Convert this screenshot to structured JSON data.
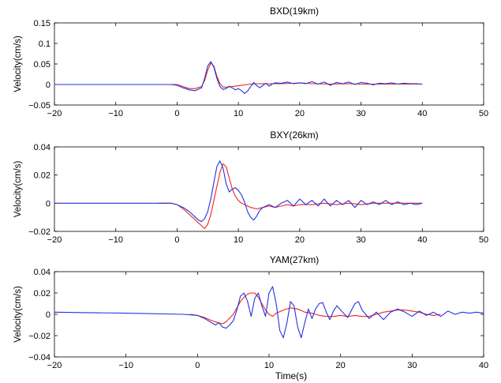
{
  "figure": {
    "xlabel": "Time(s)",
    "series_colors": {
      "red": "#ee2222",
      "blue": "#2233dd"
    }
  },
  "chart_data": [
    {
      "type": "line",
      "title": "BXD(19km)",
      "xlabel": "",
      "ylabel": "Velocity(cm/s)",
      "xlim": [
        -20,
        50
      ],
      "ylim": [
        -0.05,
        0.15
      ],
      "xticks": [
        "−20",
        "−10",
        "0",
        "10",
        "20",
        "30",
        "40",
        "50"
      ],
      "yticks": [
        "−0.05",
        "0",
        "0.05",
        "0.1",
        "0.15"
      ],
      "grid": false,
      "series": [
        {
          "color": "#ee2222",
          "x": [
            -3,
            0,
            1,
            2,
            3,
            4,
            4.5,
            5,
            5.5,
            6,
            6.5,
            7,
            7.5,
            8,
            9,
            10,
            11,
            12,
            13,
            15,
            17,
            19,
            20,
            22,
            25,
            28,
            30,
            33,
            36,
            40
          ],
          "y": [
            0,
            0,
            -0.005,
            -0.01,
            -0.01,
            -0.005,
            0.01,
            0.035,
            0.052,
            0.045,
            0.02,
            0.002,
            -0.006,
            -0.007,
            -0.005,
            -0.003,
            -0.001,
            0.001,
            0.002,
            0.002,
            0.002,
            0.003,
            0.004,
            0.002,
            0.001,
            0.002,
            0.001,
            0.001,
            0.001,
            0.001
          ]
        },
        {
          "color": "#2233dd",
          "x": [
            -20,
            -5,
            -1,
            0,
            1,
            2,
            3,
            4,
            4.5,
            5,
            5.5,
            6,
            6.5,
            7,
            7.5,
            8,
            8.5,
            9,
            9.5,
            10,
            10.5,
            11,
            11.5,
            12,
            12.5,
            13,
            13.5,
            14,
            14.5,
            15,
            15.5,
            16,
            17,
            18,
            19,
            20,
            21,
            22,
            23,
            24,
            25,
            26,
            27,
            28,
            29,
            30,
            31,
            32,
            33,
            34,
            35,
            36,
            37,
            38,
            39,
            40
          ],
          "y": [
            0,
            0,
            0,
            -0.002,
            -0.008,
            -0.013,
            -0.015,
            -0.008,
            0.015,
            0.045,
            0.056,
            0.042,
            0.015,
            -0.005,
            -0.012,
            -0.01,
            -0.004,
            -0.008,
            -0.013,
            -0.01,
            -0.015,
            -0.022,
            -0.016,
            -0.005,
            0.005,
            -0.003,
            -0.008,
            -0.002,
            0.003,
            -0.004,
            0.001,
            0.004,
            0.003,
            0.006,
            0.002,
            0.004,
            0.002,
            0.007,
            0.001,
            0.006,
            -0.002,
            0.005,
            0.002,
            0.006,
            0,
            0.005,
            0.003,
            -0.001,
            0.003,
            0.002,
            0.004,
            0.001,
            0.003,
            0.002,
            0.002,
            0.001
          ]
        }
      ]
    },
    {
      "type": "line",
      "title": "BXY(26km)",
      "xlabel": "",
      "ylabel": "Velocity(cm/s)",
      "xlim": [
        -20,
        50
      ],
      "ylim": [
        -0.02,
        0.04
      ],
      "xticks": [
        "−20",
        "−10",
        "0",
        "10",
        "20",
        "30",
        "40",
        "50"
      ],
      "yticks": [
        "−0.02",
        "0",
        "0.02",
        "0.04"
      ],
      "grid": false,
      "series": [
        {
          "color": "#ee2222",
          "x": [
            -3,
            -1,
            0,
            1,
            2,
            3,
            4,
            4.5,
            5,
            5.5,
            6,
            6.5,
            7,
            7.5,
            8,
            8.5,
            9,
            9.5,
            10,
            10.5,
            11,
            11.5,
            12,
            13,
            14,
            15,
            16,
            17,
            18,
            19,
            20,
            22,
            24,
            26,
            28,
            30,
            32,
            34,
            36,
            38,
            40
          ],
          "y": [
            0,
            0,
            -0.001,
            -0.004,
            -0.008,
            -0.012,
            -0.016,
            -0.018,
            -0.015,
            -0.008,
            0.002,
            0.012,
            0.022,
            0.028,
            0.026,
            0.018,
            0.01,
            0.005,
            0.002,
            0,
            -0.001,
            -0.002,
            -0.003,
            -0.004,
            -0.003,
            -0.002,
            -0.003,
            -0.002,
            -0.001,
            -0.002,
            -0.001,
            -0.001,
            0,
            -0.001,
            0,
            -0.001,
            0,
            0,
            0,
            0,
            0
          ]
        },
        {
          "color": "#2233dd",
          "x": [
            -20,
            -5,
            -1,
            0,
            1,
            2,
            3,
            3.5,
            4,
            4.5,
            5,
            5.5,
            6,
            6.5,
            7,
            7.5,
            8,
            8.5,
            9,
            9.5,
            10,
            10.5,
            11,
            11.5,
            12,
            12.5,
            13,
            13.5,
            14,
            15,
            16,
            17,
            18,
            19,
            20,
            21,
            22,
            23,
            24,
            25,
            26,
            27,
            28,
            29,
            30,
            31,
            32,
            33,
            34,
            35,
            36,
            37,
            38,
            39,
            40
          ],
          "y": [
            0,
            0,
            0,
            -0.001,
            -0.003,
            -0.006,
            -0.01,
            -0.012,
            -0.013,
            -0.011,
            -0.006,
            0.003,
            0.015,
            0.026,
            0.03,
            0.025,
            0.014,
            0.008,
            0.01,
            0.011,
            0.009,
            0.006,
            0.001,
            -0.006,
            -0.01,
            -0.012,
            -0.009,
            -0.005,
            -0.003,
            -0.001,
            -0.003,
            0,
            0.002,
            -0.002,
            0.003,
            -0.001,
            0.002,
            -0.002,
            0.003,
            -0.002,
            0.002,
            -0.001,
            0.002,
            -0.003,
            0.002,
            -0.001,
            0.001,
            -0.001,
            0.002,
            -0.001,
            0.001,
            -0.001,
            0,
            -0.001,
            0
          ]
        }
      ]
    },
    {
      "type": "line",
      "title": "YAM(27km)",
      "xlabel": "Time(s)",
      "ylabel": "Velocity(cm/s)",
      "xlim": [
        -20,
        40
      ],
      "ylim": [
        -0.04,
        0.04
      ],
      "xticks": [
        "−20",
        "−10",
        "0",
        "10",
        "20",
        "30",
        "40"
      ],
      "yticks": [
        "−0.04",
        "−0.02",
        "0",
        "0.02",
        "0.04"
      ],
      "grid": false,
      "series": [
        {
          "color": "#ee2222",
          "x": [
            -1,
            0,
            1,
            2,
            3,
            3.5,
            4,
            5,
            5.5,
            6,
            6.5,
            7,
            7.5,
            8,
            8.5,
            9,
            9.5,
            10,
            10.5,
            11,
            12,
            13,
            14,
            15,
            16,
            17,
            18,
            19,
            20,
            21,
            22,
            23,
            24,
            25,
            26,
            27,
            28,
            29,
            30,
            31,
            32,
            33,
            34
          ],
          "y": [
            0,
            -0.001,
            -0.003,
            -0.006,
            -0.008,
            -0.009,
            -0.007,
            0,
            0.006,
            0.012,
            0.016,
            0.019,
            0.02,
            0.02,
            0.016,
            0.01,
            0.004,
            0,
            -0.002,
            0.001,
            0.004,
            0.006,
            0.005,
            0.002,
            0.001,
            -0.001,
            -0.002,
            -0.002,
            -0.001,
            -0.002,
            -0.001,
            -0.002,
            -0.002,
            0,
            0.002,
            0.003,
            0.004,
            0.004,
            0.003,
            0.002,
            0,
            -0.001,
            0
          ]
        },
        {
          "color": "#2233dd",
          "x": [
            -20,
            -10,
            -2,
            0,
            1,
            2,
            2.5,
            3,
            3.5,
            4,
            4.5,
            5,
            5.5,
            6,
            6.5,
            7,
            7.5,
            8,
            8.5,
            9,
            9.5,
            10,
            10.5,
            11,
            11.5,
            12,
            12.5,
            13,
            13.5,
            14,
            14.5,
            15,
            15.5,
            16,
            16.5,
            17,
            17.5,
            18,
            18.5,
            19,
            19.5,
            20,
            21,
            22,
            22.5,
            23,
            24,
            25,
            26,
            27,
            28,
            29,
            30,
            31,
            32,
            33,
            34,
            35,
            36,
            37,
            38,
            39,
            40
          ],
          "y": [
            0.002,
            0.001,
            0,
            -0.001,
            -0.004,
            -0.008,
            -0.01,
            -0.008,
            -0.012,
            -0.013,
            -0.01,
            -0.006,
            0.004,
            0.017,
            0.02,
            0.012,
            -0.002,
            0.015,
            0.02,
            0.008,
            -0.002,
            0.02,
            0.026,
            0.01,
            -0.015,
            -0.022,
            -0.008,
            0.012,
            0.008,
            -0.012,
            -0.022,
            -0.008,
            0.005,
            -0.004,
            0.005,
            0.01,
            0.011,
            0.002,
            -0.005,
            0.003,
            0.008,
            0.004,
            -0.003,
            0.01,
            0.012,
            0.004,
            -0.004,
            0.002,
            -0.005,
            0.002,
            0.005,
            0.002,
            -0.002,
            0.003,
            -0.001,
            0.002,
            -0.002,
            0.003,
            0,
            0.002,
            0.001,
            0.002,
            0.001
          ]
        }
      ]
    }
  ]
}
